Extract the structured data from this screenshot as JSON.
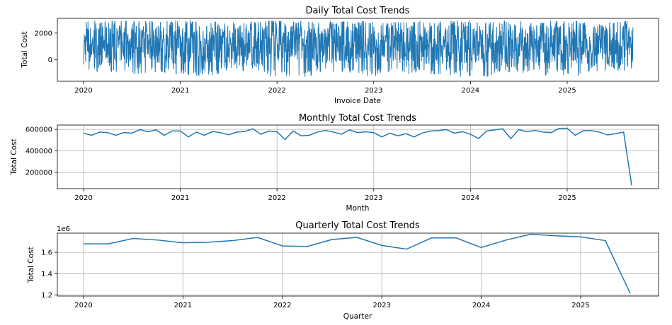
{
  "chart_data": [
    {
      "type": "line",
      "title": "Daily Total Cost Trends",
      "xlabel": "Invoice Date",
      "ylabel": "Total Cost",
      "color": "#1f77b4",
      "grid": false,
      "x_ticks": [
        "2020",
        "2021",
        "2022",
        "2023",
        "2024",
        "2025"
      ],
      "y_ticks": [
        "0",
        "2000"
      ],
      "ylim": [
        -1600,
        3100
      ],
      "x_range": [
        "2020-01-01",
        "2025-09-05"
      ],
      "series": [
        {
          "values_summary": "daily values fluctuating densely between about -1300 and 2950",
          "band_upper_envelope": [
            2950,
            2900,
            2950,
            2900,
            2950,
            2900,
            2950,
            2900,
            2950,
            2900,
            2950,
            2900
          ],
          "band_lower_envelope": [
            -900,
            -1100,
            -1200,
            -900,
            -1300,
            -1000,
            -1200,
            -1100,
            -1300,
            -1000,
            -1200,
            -900
          ]
        }
      ]
    },
    {
      "type": "line",
      "title": "Monthly Total Cost Trends",
      "xlabel": "Month",
      "ylabel": "Total Cost",
      "color": "#1f77b4",
      "grid": true,
      "x_ticks": [
        "2020",
        "2021",
        "2022",
        "2023",
        "2024",
        "2025"
      ],
      "y_ticks": [
        "200000",
        "400000",
        "600000"
      ],
      "ylim": [
        50000,
        640000
      ],
      "x_start": "2020-01",
      "series": [
        {
          "values": [
            565000,
            545000,
            575000,
            570000,
            545000,
            570000,
            565000,
            598000,
            578000,
            595000,
            545000,
            585000,
            585000,
            530000,
            575000,
            545000,
            580000,
            570000,
            550000,
            575000,
            580000,
            605000,
            555000,
            585000,
            578000,
            505000,
            585000,
            540000,
            545000,
            575000,
            590000,
            575000,
            555000,
            595000,
            570000,
            578000,
            570000,
            530000,
            565000,
            540000,
            560000,
            530000,
            565000,
            585000,
            588000,
            598000,
            565000,
            578000,
            555000,
            515000,
            585000,
            595000,
            605000,
            515000,
            598000,
            578000,
            590000,
            575000,
            570000,
            610000,
            610000,
            545000,
            588000,
            588000,
            575000,
            548000,
            560000,
            575000,
            80000
          ]
        }
      ]
    },
    {
      "type": "line",
      "title": "Quarterly Total Cost Trends",
      "xlabel": "Quarter",
      "ylabel": "Total Cost",
      "scale_label": "1e6",
      "color": "#1f77b4",
      "grid": true,
      "x_ticks": [
        "2020",
        "2021",
        "2022",
        "2023",
        "2024",
        "2025"
      ],
      "y_ticks": [
        "1.2",
        "1.4",
        "1.6"
      ],
      "ylim": [
        1.19,
        1.78
      ],
      "x_start": "2020-Q1",
      "series": [
        {
          "values": [
            1.68,
            1.68,
            1.73,
            1.715,
            1.69,
            1.695,
            1.71,
            1.74,
            1.66,
            1.655,
            1.72,
            1.74,
            1.665,
            1.63,
            1.735,
            1.735,
            1.645,
            1.715,
            1.77,
            1.755,
            1.745,
            1.71,
            1.215
          ]
        }
      ]
    }
  ]
}
